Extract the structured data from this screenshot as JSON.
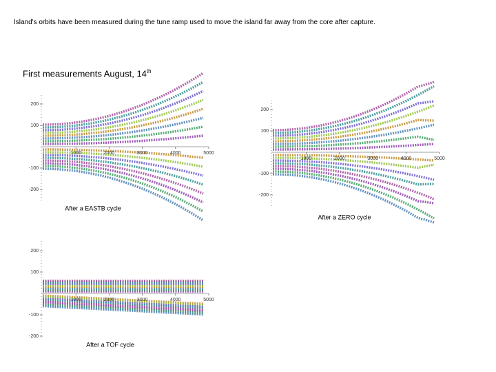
{
  "header": {
    "text": "Island's orbits have been measured during the tune ramp used to move the island far away from the core after capture."
  },
  "subtitle": {
    "text": "First measurements August, 14",
    "sup": "th"
  },
  "plots": [
    {
      "caption": "After a EASTB cycle",
      "xticks": [
        1000,
        2000,
        3000,
        4000,
        5000
      ],
      "yticks": [
        200,
        100,
        -100,
        -200
      ]
    },
    {
      "caption": "After a ZERO cycle",
      "xticks": [
        1000,
        2000,
        3000,
        4000,
        5000
      ],
      "yticks": [
        200,
        100,
        -100,
        -200
      ]
    },
    {
      "caption": "After a TOF cycle",
      "xticks": [
        1000,
        2000,
        3000,
        4000,
        5000
      ],
      "yticks": [
        200,
        100,
        -100,
        -200
      ]
    }
  ]
}
